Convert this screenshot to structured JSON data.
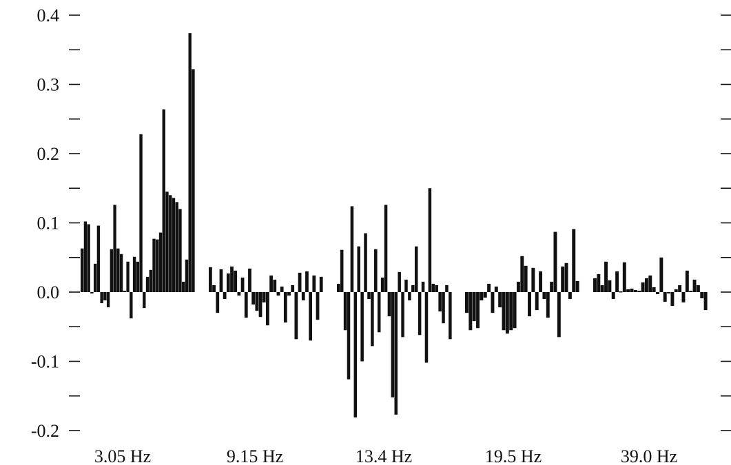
{
  "chart_data": {
    "type": "bar",
    "title": "",
    "xlabel": "",
    "ylabel": "",
    "ylim": [
      -0.2,
      0.4
    ],
    "grid": false,
    "y_ticks": [
      0.4,
      0.3,
      0.2,
      0.1,
      0.0,
      -0.1,
      -0.2
    ],
    "y_tick_labels": [
      "0.4",
      "0.3",
      "0.2",
      "0.1",
      "0.0",
      "-0.1",
      "-0.2"
    ],
    "y_minor_ticks": [
      0.35,
      0.25,
      0.15,
      0.05,
      -0.05,
      -0.15
    ],
    "groups": [
      {
        "label": "3.05 Hz",
        "values": [
          0.063,
          0.102,
          0.098,
          -0.002,
          0.041,
          0.096,
          -0.016,
          -0.012,
          -0.022,
          0.062,
          0.126,
          0.063,
          0.055,
          0.002,
          0.044,
          -0.038,
          0.051,
          0.044,
          0.228,
          -0.023,
          0.022,
          0.032,
          0.077,
          0.076,
          0.086,
          0.264,
          0.145,
          0.14,
          0.136,
          0.13,
          0.12,
          0.015,
          0.047,
          0.374,
          0.322
        ]
      },
      {
        "label": "9.15 Hz",
        "values": [
          0.036,
          0.01,
          -0.03,
          0.033,
          -0.01,
          0.027,
          0.037,
          0.031,
          -0.005,
          0.021,
          -0.037,
          0.034,
          -0.018,
          -0.027,
          -0.036,
          -0.015,
          -0.048,
          0.024,
          0.018,
          -0.005,
          0.008,
          -0.044,
          -0.005,
          0.01,
          -0.068,
          0.028,
          -0.012,
          0.03,
          -0.07,
          0.024,
          -0.04,
          0.022
        ]
      },
      {
        "label": "13.4 Hz",
        "values": [
          0.012,
          0.061,
          -0.055,
          -0.126,
          0.124,
          -0.181,
          0.066,
          -0.1,
          0.085,
          -0.01,
          -0.078,
          0.062,
          -0.058,
          0.021,
          0.126,
          -0.035,
          -0.152,
          -0.177,
          0.029,
          -0.065,
          0.018,
          -0.012,
          0.01,
          0.066,
          -0.062,
          0.015,
          -0.102,
          0.15,
          0.012,
          0.01,
          -0.028,
          -0.045,
          0.01,
          -0.068
        ]
      },
      {
        "label": "19.5 Hz",
        "values": [
          -0.03,
          -0.055,
          -0.042,
          -0.052,
          -0.012,
          -0.008,
          0.012,
          -0.03,
          0.008,
          -0.022,
          -0.055,
          -0.06,
          -0.055,
          -0.052,
          0.015,
          0.052,
          0.038,
          -0.035,
          0.035,
          -0.026,
          0.03,
          -0.01,
          -0.037,
          0.015,
          0.087,
          -0.065,
          0.037,
          0.042,
          -0.01,
          0.091,
          0.016
        ]
      },
      {
        "label": "39.0 Hz",
        "values": [
          0.02,
          0.026,
          0.01,
          0.044,
          0.017,
          -0.01,
          0.03,
          0.001,
          0.043,
          0.004,
          0.005,
          0.003,
          0.002,
          0.014,
          0.02,
          0.024,
          0.007,
          -0.003,
          0.05,
          -0.014,
          -0.002,
          -0.02,
          0.004,
          0.01,
          -0.015,
          0.031,
          0.002,
          0.018,
          0.01,
          -0.009,
          -0.026
        ]
      }
    ]
  }
}
